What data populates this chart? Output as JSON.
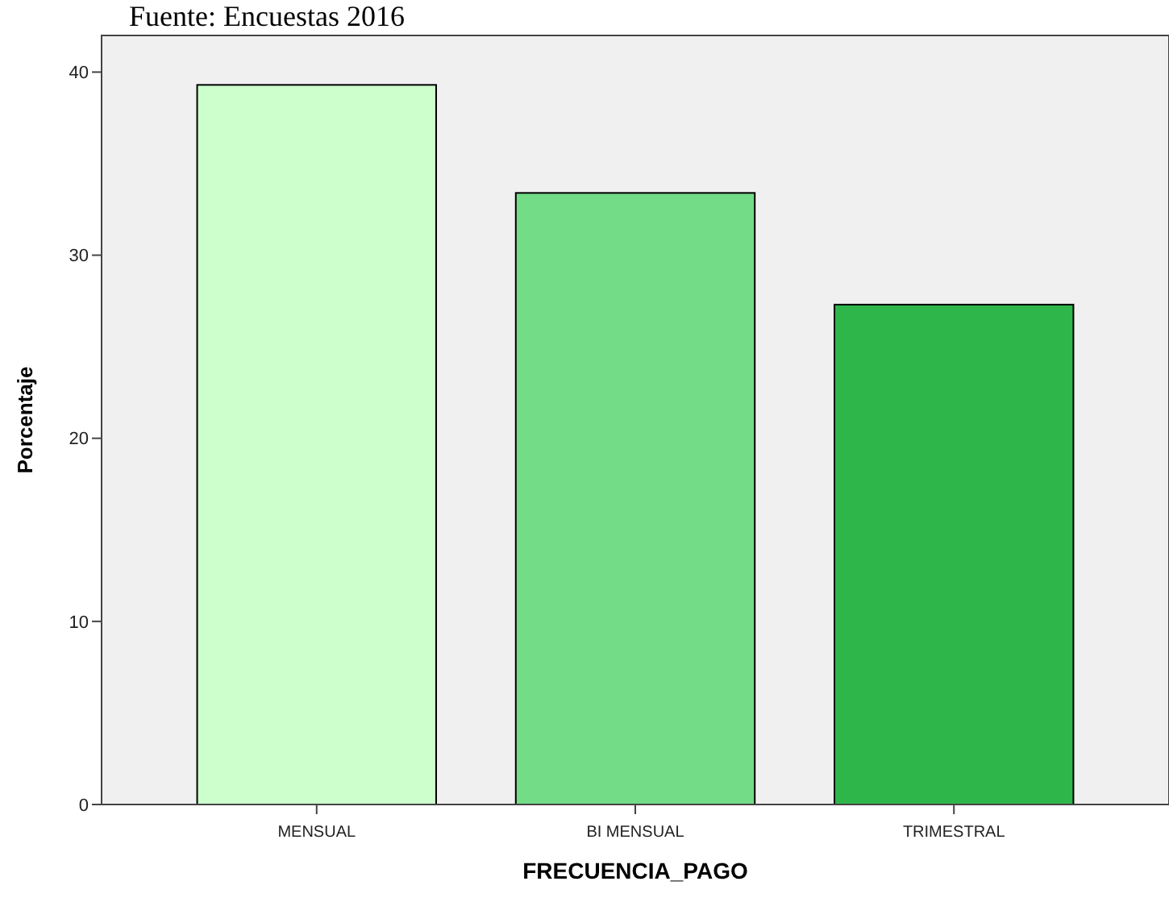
{
  "chart_data": {
    "type": "bar",
    "annotations": [
      "Fuente: Encuestas 2016"
    ],
    "xlabel": "FRECUENCIA_PAGO",
    "ylabel": "Porcentaje",
    "categories": [
      "MENSUAL",
      "BI MENSUAL",
      "TRIMESTRAL"
    ],
    "values": [
      39.3,
      33.4,
      27.3
    ],
    "colors": [
      "#ccffcc",
      "#72dd86",
      "#2eb64a"
    ],
    "ylim": [
      0,
      42
    ],
    "yticks": [
      0,
      10,
      20,
      30,
      40
    ],
    "grid": false
  }
}
